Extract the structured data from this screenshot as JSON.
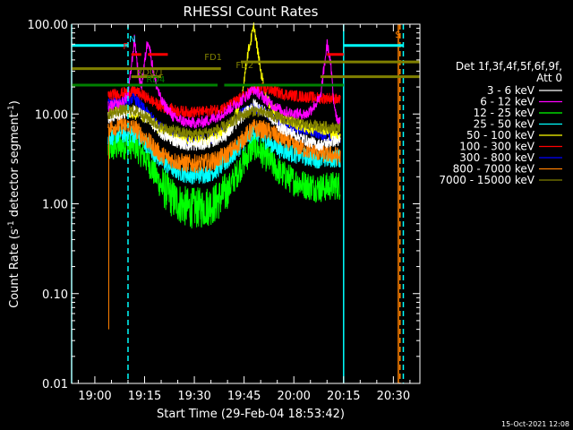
{
  "chart_data": {
    "type": "line",
    "title": "RHESSI Count Rates",
    "xlabel": "Start Time (29-Feb-04 18:53:42)",
    "ylabel": "Count Rate (s⁻¹ detector segment⁻¹)",
    "ylabel_main": "Count Rate (s",
    "ylabel_sup1": "-1",
    "ylabel_mid": " detector segment",
    "ylabel_sup2": "-1",
    "ylabel_close": ")",
    "yscale": "log",
    "xlim_minutes": [
      -7,
      98
    ],
    "ylim": [
      0.01,
      100
    ],
    "xticks": [
      {
        "min": 0,
        "label": "19:00"
      },
      {
        "min": 15,
        "label": "19:15"
      },
      {
        "min": 30,
        "label": "19:30"
      },
      {
        "min": 45,
        "label": "19:45"
      },
      {
        "min": 60,
        "label": "20:00"
      },
      {
        "min": 75,
        "label": "20:15"
      },
      {
        "min": 90,
        "label": "20:30"
      }
    ],
    "yticks": [
      {
        "v": 100,
        "label": "100.00"
      },
      {
        "v": 10,
        "label": "10.00"
      },
      {
        "v": 1,
        "label": "1.00"
      },
      {
        "v": 0.1,
        "label": "0.10"
      },
      {
        "v": 0.01,
        "label": "0.01"
      }
    ],
    "legend_title": [
      "Det 1f,3f,4f,5f,6f,9f,",
      "Att 0"
    ],
    "legend_position": "right",
    "series": [
      {
        "name": "3 - 6 keV",
        "color": "#ffffff",
        "x": [
          4,
          8,
          12,
          16,
          20,
          24,
          28,
          32,
          36,
          40,
          44,
          48,
          52,
          56,
          60,
          64,
          68,
          72,
          74
        ],
        "y": [
          9,
          10,
          11,
          9,
          6,
          5,
          4.5,
          4.5,
          5,
          6,
          9,
          13,
          10,
          7,
          6,
          5,
          4.5,
          5,
          5
        ]
      },
      {
        "name": "6 - 12 keV",
        "color": "#ff00ff",
        "x": [
          4,
          8,
          10,
          12,
          13,
          14,
          16,
          18,
          20,
          24,
          28,
          32,
          36,
          40,
          44,
          48,
          52,
          56,
          60,
          64,
          68,
          70,
          71,
          72,
          73,
          74
        ],
        "y": [
          12,
          13,
          16,
          70,
          30,
          20,
          70,
          25,
          14,
          9,
          8,
          8,
          9,
          11,
          14,
          19,
          14,
          11,
          10,
          10,
          15,
          60,
          40,
          14,
          9,
          8
        ]
      },
      {
        "name": "12 - 25 keV",
        "color": "#00ff00",
        "x": [
          4,
          8,
          12,
          16,
          20,
          24,
          28,
          32,
          36,
          40,
          44,
          48,
          52,
          56,
          60,
          64,
          68,
          72,
          74
        ],
        "y": [
          4,
          4.5,
          4.5,
          3,
          1.6,
          1.1,
          0.9,
          0.9,
          1.0,
          1.4,
          2.6,
          4.5,
          3.2,
          2.2,
          1.8,
          1.6,
          1.5,
          1.6,
          1.6
        ]
      },
      {
        "name": "25 - 50 keV",
        "color": "#00ffff",
        "x": [
          4,
          8,
          12,
          16,
          20,
          24,
          28,
          32,
          36,
          40,
          44,
          48,
          52,
          56,
          60,
          64,
          68,
          72,
          74
        ],
        "y": [
          5.5,
          6,
          6,
          4.5,
          3,
          2.4,
          2.1,
          2.1,
          2.3,
          3,
          4.5,
          6.5,
          5,
          4,
          3.6,
          3.3,
          3.1,
          3.2,
          3.2
        ]
      },
      {
        "name": "50 - 100 keV",
        "color": "#ffff00",
        "x": [
          4,
          8,
          12,
          16,
          20,
          24,
          28,
          32,
          36,
          40,
          44,
          46,
          48,
          50,
          52,
          56,
          60,
          64,
          68,
          72,
          74
        ],
        "y": [
          10,
          11,
          10,
          9,
          6.5,
          5.5,
          5,
          5,
          5.5,
          6.5,
          13,
          45,
          95,
          30,
          14,
          9,
          8,
          7,
          7,
          6,
          5.5
        ]
      },
      {
        "name": "100 - 300 keV",
        "color": "#ff0000",
        "x": [
          4,
          8,
          12,
          16,
          20,
          24,
          28,
          32,
          36,
          40,
          44,
          48,
          52,
          56,
          60,
          64,
          68,
          72,
          74
        ],
        "y": [
          16,
          17,
          18,
          15,
          12,
          11,
          10.5,
          10.5,
          11,
          12,
          15,
          19,
          19,
          17,
          16,
          15.5,
          15,
          15,
          14
        ]
      },
      {
        "name": "300 - 800 keV",
        "color": "#0000ff",
        "x": [
          4,
          8,
          12,
          16,
          20,
          24,
          28,
          32,
          36,
          40,
          44,
          48,
          52,
          56,
          60,
          64,
          68,
          72,
          74
        ],
        "y": [
          13,
          14,
          15,
          10,
          7,
          5.5,
          5,
          5,
          5.5,
          7,
          10,
          12,
          10,
          8,
          7,
          6.5,
          6,
          5.5,
          5.5
        ]
      },
      {
        "name": "800 - 7000 keV",
        "color": "#ff8000",
        "x": [
          4,
          8,
          12,
          16,
          20,
          24,
          28,
          32,
          36,
          40,
          44,
          48,
          52,
          56,
          60,
          64,
          68,
          72,
          74
        ],
        "y": [
          7,
          7.5,
          7,
          5,
          3.5,
          3,
          2.8,
          2.8,
          3,
          3.6,
          5,
          7,
          6.5,
          5.5,
          4.5,
          4,
          3.7,
          3.5,
          3.3
        ]
      },
      {
        "name": "7000 - 15000 keV",
        "color": "#808000",
        "x": [
          4,
          8,
          12,
          16,
          20,
          24,
          28,
          32,
          36,
          40,
          44,
          48,
          52,
          56,
          60,
          64,
          68,
          72,
          74
        ],
        "y": [
          10,
          11,
          11,
          9,
          7,
          6.5,
          6,
          6,
          6.5,
          7.5,
          9.5,
          11,
          10,
          9,
          8,
          7.5,
          7.3,
          7,
          7
        ]
      }
    ],
    "flags": [
      {
        "label": "N",
        "color": "#00ffff",
        "y": 58,
        "segments": [
          [
            -7,
            10
          ],
          [
            75,
            93
          ]
        ]
      },
      {
        "label": "F",
        "color": "#ff0000",
        "y": 46,
        "segments": [
          [
            11,
            14
          ],
          [
            16,
            22
          ],
          [
            70,
            75
          ]
        ]
      },
      {
        "label": "S",
        "color": "#ff8000",
        "y": 58,
        "segments": []
      },
      {
        "label": "FD1",
        "color": "#808000",
        "y": 32,
        "segments": [
          [
            -7,
            38
          ]
        ]
      },
      {
        "label": "FD2",
        "color": "#808000",
        "y": 38,
        "segments": [
          [
            44,
            98
          ]
        ]
      },
      {
        "label": "RD0/1",
        "color": "#808000",
        "y": 26,
        "segments": [
          [
            11,
            20
          ],
          [
            68,
            98
          ]
        ]
      },
      {
        "label": "RD4",
        "color": "#008000",
        "y": 21,
        "segments": [
          [
            -7,
            37
          ],
          [
            39,
            75
          ]
        ]
      }
    ],
    "vlines": [
      {
        "x": -7,
        "color": "#00ffff",
        "style": "solid"
      },
      {
        "x": 10,
        "color": "#00ffff",
        "style": "dashed"
      },
      {
        "x": 75,
        "color": "#00ffff",
        "style": "solid"
      },
      {
        "x": 93,
        "color": "#00ffff",
        "style": "dashed"
      },
      {
        "x": 91.5,
        "color": "#ff8000",
        "style": "solid"
      },
      {
        "x": 92,
        "color": "#ff8000",
        "style": "dashed"
      }
    ]
  },
  "footer": {
    "timestamp": "15-Oct-2021 12:08"
  }
}
